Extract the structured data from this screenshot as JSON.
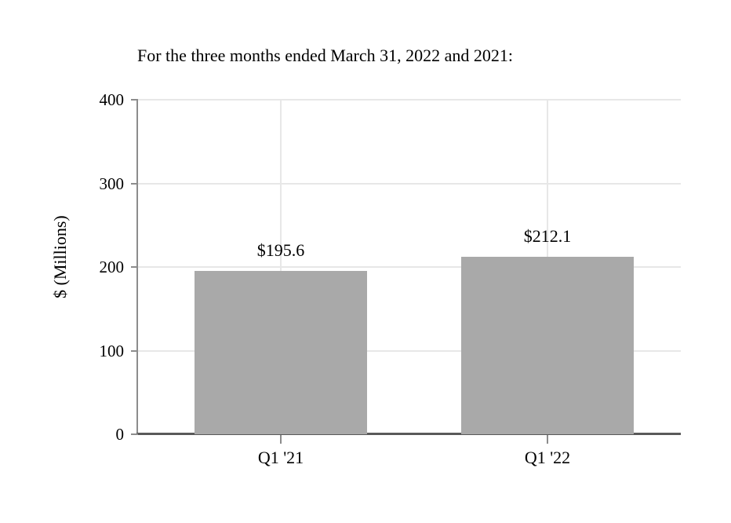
{
  "chart_data": {
    "type": "bar",
    "title": "For the three months ended March 31, 2022 and 2021:",
    "categories": [
      "Q1 '21",
      "Q1 '22"
    ],
    "values": [
      195.6,
      212.1
    ],
    "bar_labels": [
      "$195.6",
      "$212.1"
    ],
    "xlabel": "",
    "ylabel": "$ (Millions)",
    "ylim": [
      0,
      400
    ],
    "yticks": [
      0,
      100,
      200,
      300,
      400
    ],
    "grid": "horizontal gridlines at y ticks; one vertical gridline at each category center",
    "legend_position": "none",
    "colors": {
      "bar_fill": "#a9a9a9",
      "gridline": "#e7e7e7",
      "y_axis_line": "#8c8c8c",
      "x_axis_line": "#595959",
      "text": "#000000",
      "background": "#ffffff"
    }
  }
}
